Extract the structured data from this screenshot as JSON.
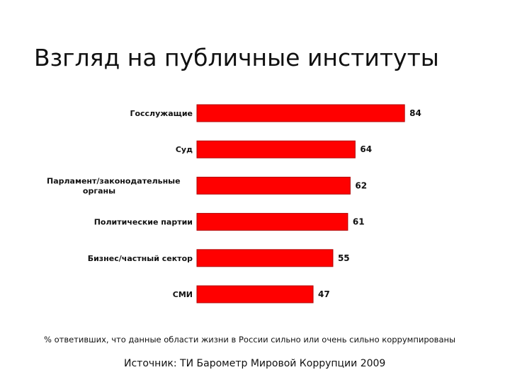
{
  "title": "Взгляд на публичные институты",
  "chart_data": {
    "type": "bar",
    "orientation": "horizontal",
    "categories": [
      [
        "Госслужащие"
      ],
      [
        "Суд"
      ],
      [
        "Парламент/законодательные",
        "органы"
      ],
      [
        "Политические партии"
      ],
      [
        "Бизнес/частный сектор"
      ],
      [
        "СМИ"
      ]
    ],
    "values": [
      84,
      64,
      62,
      61,
      55,
      47
    ],
    "bar_color": "#ff0000",
    "bar_edge_color": "#b20000",
    "grid": false,
    "legend": "none",
    "xlim": [
      0,
      100
    ]
  },
  "footnote": "% ответивших, что данные области жизни в России сильно или очень сильно коррумпированы",
  "source": "Источник: ТИ Барометр Мировой Коррупции 2009"
}
